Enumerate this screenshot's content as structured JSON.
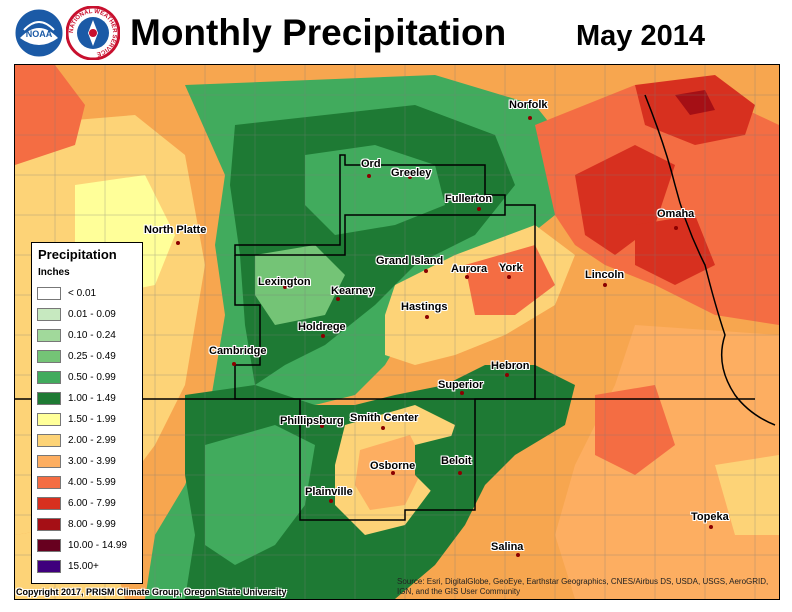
{
  "header": {
    "title": "Monthly Precipitation",
    "date": "May 2014"
  },
  "logos": {
    "noaa_text": "NOAA",
    "nws_ring_text": "NATIONAL WEATHER SERVICE"
  },
  "legend": {
    "title": "Precipitation",
    "units": "Inches",
    "items": [
      {
        "label": "< 0.01",
        "color": "#ffffff"
      },
      {
        "label": "0.01 - 0.09",
        "color": "#c7e9c0"
      },
      {
        "label": "0.10 - 0.24",
        "color": "#a1d99b"
      },
      {
        "label": "0.25 - 0.49",
        "color": "#74c476"
      },
      {
        "label": "0.50 - 0.99",
        "color": "#41ab5d"
      },
      {
        "label": "1.00 - 1.49",
        "color": "#1e7a34"
      },
      {
        "label": "1.50 - 1.99",
        "color": "#ffff99"
      },
      {
        "label": "2.00 - 2.99",
        "color": "#fdd377"
      },
      {
        "label": "3.00 - 3.99",
        "color": "#fdae61"
      },
      {
        "label": "4.00 - 5.99",
        "color": "#f46d43"
      },
      {
        "label": "6.00 - 7.99",
        "color": "#d7301f"
      },
      {
        "label": "8.00 - 9.99",
        "color": "#a50f15"
      },
      {
        "label": "10.00 - 14.99",
        "color": "#67001f"
      },
      {
        "label": "15.00+",
        "color": "#3f007d"
      }
    ]
  },
  "cities": [
    {
      "name": "Norfolk"
    },
    {
      "name": "Ord"
    },
    {
      "name": "Greeley"
    },
    {
      "name": "Fullerton"
    },
    {
      "name": "Omaha"
    },
    {
      "name": "North Platte"
    },
    {
      "name": "Grand Island"
    },
    {
      "name": "Aurora"
    },
    {
      "name": "York"
    },
    {
      "name": "Lincoln"
    },
    {
      "name": "Lexington"
    },
    {
      "name": "Kearney"
    },
    {
      "name": "Hastings"
    },
    {
      "name": "Holdrege"
    },
    {
      "name": "Cambridge"
    },
    {
      "name": "Hebron"
    },
    {
      "name": "Superior"
    },
    {
      "name": "Phillipsburg"
    },
    {
      "name": "Smith Center"
    },
    {
      "name": "Osborne"
    },
    {
      "name": "Beloit"
    },
    {
      "name": "Plainville"
    },
    {
      "name": "Topeka"
    },
    {
      "name": "Salina"
    }
  ],
  "footer": {
    "copyright": "Copyright 2017, PRISM Climate Group, Oregon State University",
    "source": "Source: Esri, DigitalGlobe, GeoEye, Earthstar Geographics, CNES/Airbus DS, USDA, USGS, AeroGRID, IGN, and the GIS User Community"
  }
}
